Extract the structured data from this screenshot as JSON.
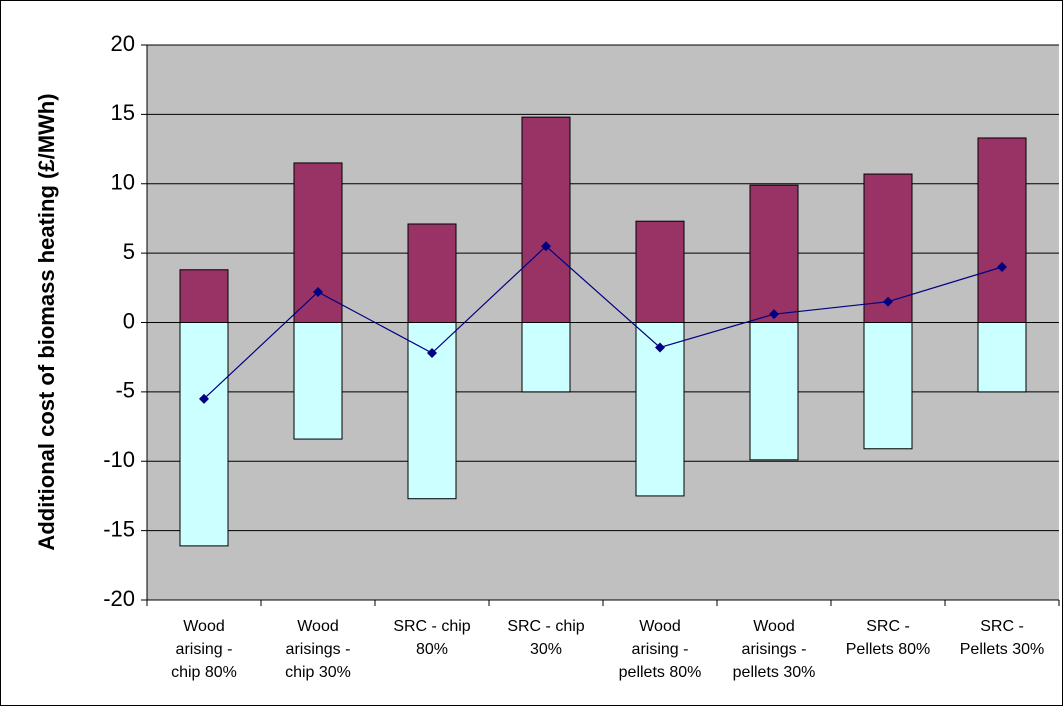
{
  "chart_data": {
    "type": "stacked-bar-line",
    "y_label": "Additional cost of biomass heating (£/MWh)",
    "categories": [
      [
        "Wood",
        "arising -",
        "chip 80%"
      ],
      [
        "Wood",
        "arisings -",
        "chip 30%"
      ],
      [
        "SRC - chip",
        "80%"
      ],
      [
        "SRC - chip",
        "30%"
      ],
      [
        "Wood",
        "arising -",
        "pellets 80%"
      ],
      [
        "Wood",
        "arisings -",
        "pellets 30%"
      ],
      [
        "SRC -",
        "Pellets 80%"
      ],
      [
        "SRC -",
        "Pellets 30%"
      ]
    ],
    "series": [
      {
        "color": "#993366",
        "values": [
          3.8,
          11.5,
          7.1,
          14.8,
          7.3,
          9.9,
          10.7,
          13.3
        ]
      },
      {
        "color": "#ccffff",
        "values": [
          -16.1,
          -8.4,
          -12.7,
          -5.0,
          -12.5,
          -9.9,
          -9.1,
          -5.0
        ]
      },
      {
        "type": "line",
        "color": "#000080",
        "values": [
          -5.5,
          2.2,
          -2.2,
          5.5,
          -1.8,
          0.6,
          1.5,
          4.0
        ]
      }
    ],
    "ylim": [
      -20,
      20
    ],
    "yticks": [
      -20,
      -15,
      -10,
      -5,
      0,
      5,
      10,
      15,
      20
    ],
    "grid": true,
    "plot_background": "#c0c0c0"
  }
}
